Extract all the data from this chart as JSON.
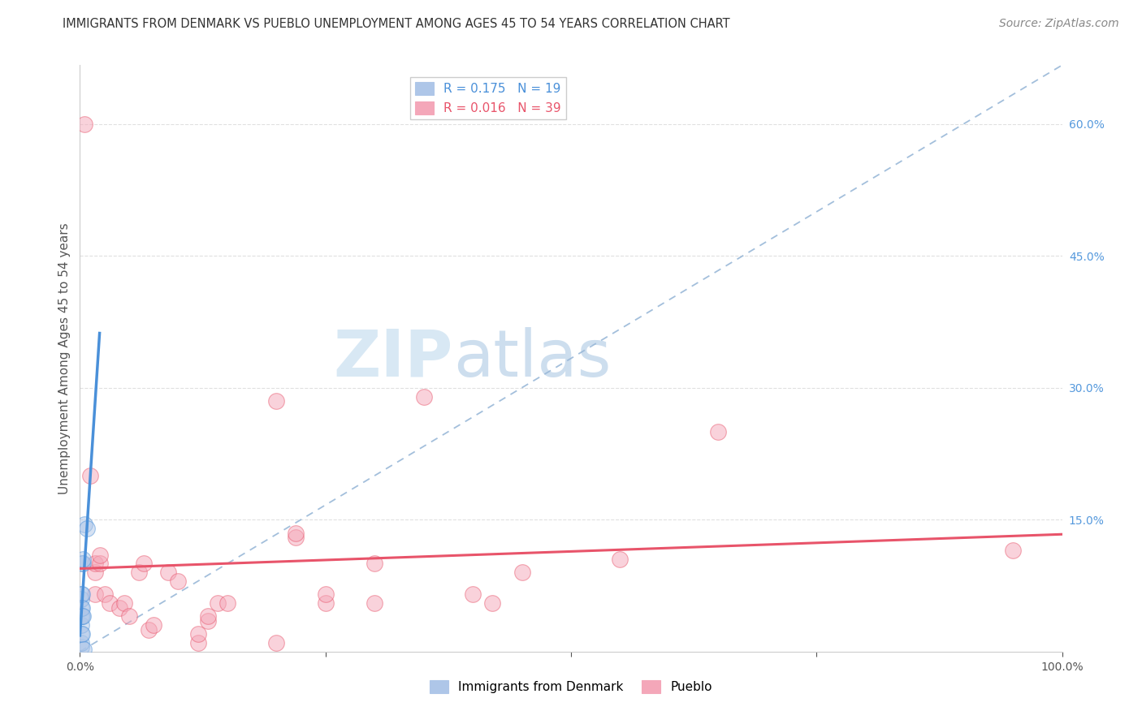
{
  "title": "IMMIGRANTS FROM DENMARK VS PUEBLO UNEMPLOYMENT AMONG AGES 45 TO 54 YEARS CORRELATION CHART",
  "source": "Source: ZipAtlas.com",
  "ylabel": "Unemployment Among Ages 45 to 54 years",
  "watermark_zip": "ZIP",
  "watermark_atlas": "atlas",
  "xlim": [
    0,
    1.0
  ],
  "ylim": [
    0,
    0.667
  ],
  "ytick_right_labels": [
    "60.0%",
    "45.0%",
    "30.0%",
    "15.0%"
  ],
  "ytick_right_values": [
    0.6,
    0.45,
    0.3,
    0.15
  ],
  "legend1_label": "R = 0.175   N = 19",
  "legend2_label": "R = 0.016   N = 39",
  "legend1_color": "#aec6e8",
  "legend2_color": "#f4a7b9",
  "trend1_color": "#4a90d9",
  "trend2_color": "#e8546a",
  "diag_color": "#99b8d8",
  "denmark_x": [
    0.001,
    0.001,
    0.001,
    0.001,
    0.001,
    0.001,
    0.001,
    0.001,
    0.002,
    0.002,
    0.002,
    0.002,
    0.002,
    0.003,
    0.003,
    0.003,
    0.004,
    0.005,
    0.007
  ],
  "denmark_y": [
    0.005,
    0.01,
    0.02,
    0.03,
    0.04,
    0.05,
    0.06,
    0.065,
    0.065,
    0.02,
    0.04,
    0.05,
    0.1,
    0.1,
    0.105,
    0.04,
    0.003,
    0.145,
    0.14
  ],
  "pueblo_x": [
    0.005,
    0.01,
    0.015,
    0.015,
    0.015,
    0.02,
    0.02,
    0.025,
    0.03,
    0.04,
    0.045,
    0.05,
    0.06,
    0.065,
    0.07,
    0.075,
    0.09,
    0.1,
    0.12,
    0.12,
    0.13,
    0.13,
    0.14,
    0.15,
    0.2,
    0.2,
    0.22,
    0.22,
    0.25,
    0.25,
    0.3,
    0.3,
    0.35,
    0.4,
    0.42,
    0.45,
    0.55,
    0.65,
    0.95
  ],
  "pueblo_y": [
    0.6,
    0.2,
    0.065,
    0.09,
    0.1,
    0.1,
    0.11,
    0.065,
    0.055,
    0.05,
    0.055,
    0.04,
    0.09,
    0.1,
    0.025,
    0.03,
    0.09,
    0.08,
    0.01,
    0.02,
    0.035,
    0.04,
    0.055,
    0.055,
    0.285,
    0.01,
    0.13,
    0.135,
    0.055,
    0.065,
    0.1,
    0.055,
    0.29,
    0.065,
    0.055,
    0.09,
    0.105,
    0.25,
    0.115
  ],
  "title_fontsize": 10.5,
  "axis_label_fontsize": 11,
  "tick_fontsize": 10,
  "legend_fontsize": 11,
  "source_fontsize": 10,
  "watermark_fontsize_zip": 58,
  "watermark_fontsize_atlas": 58,
  "watermark_color_zip": "#c8dff0",
  "watermark_color_atlas": "#b8d0e8",
  "scatter_size": 200,
  "scatter_alpha": 0.5,
  "background_color": "#ffffff",
  "grid_color": "#dddddd"
}
